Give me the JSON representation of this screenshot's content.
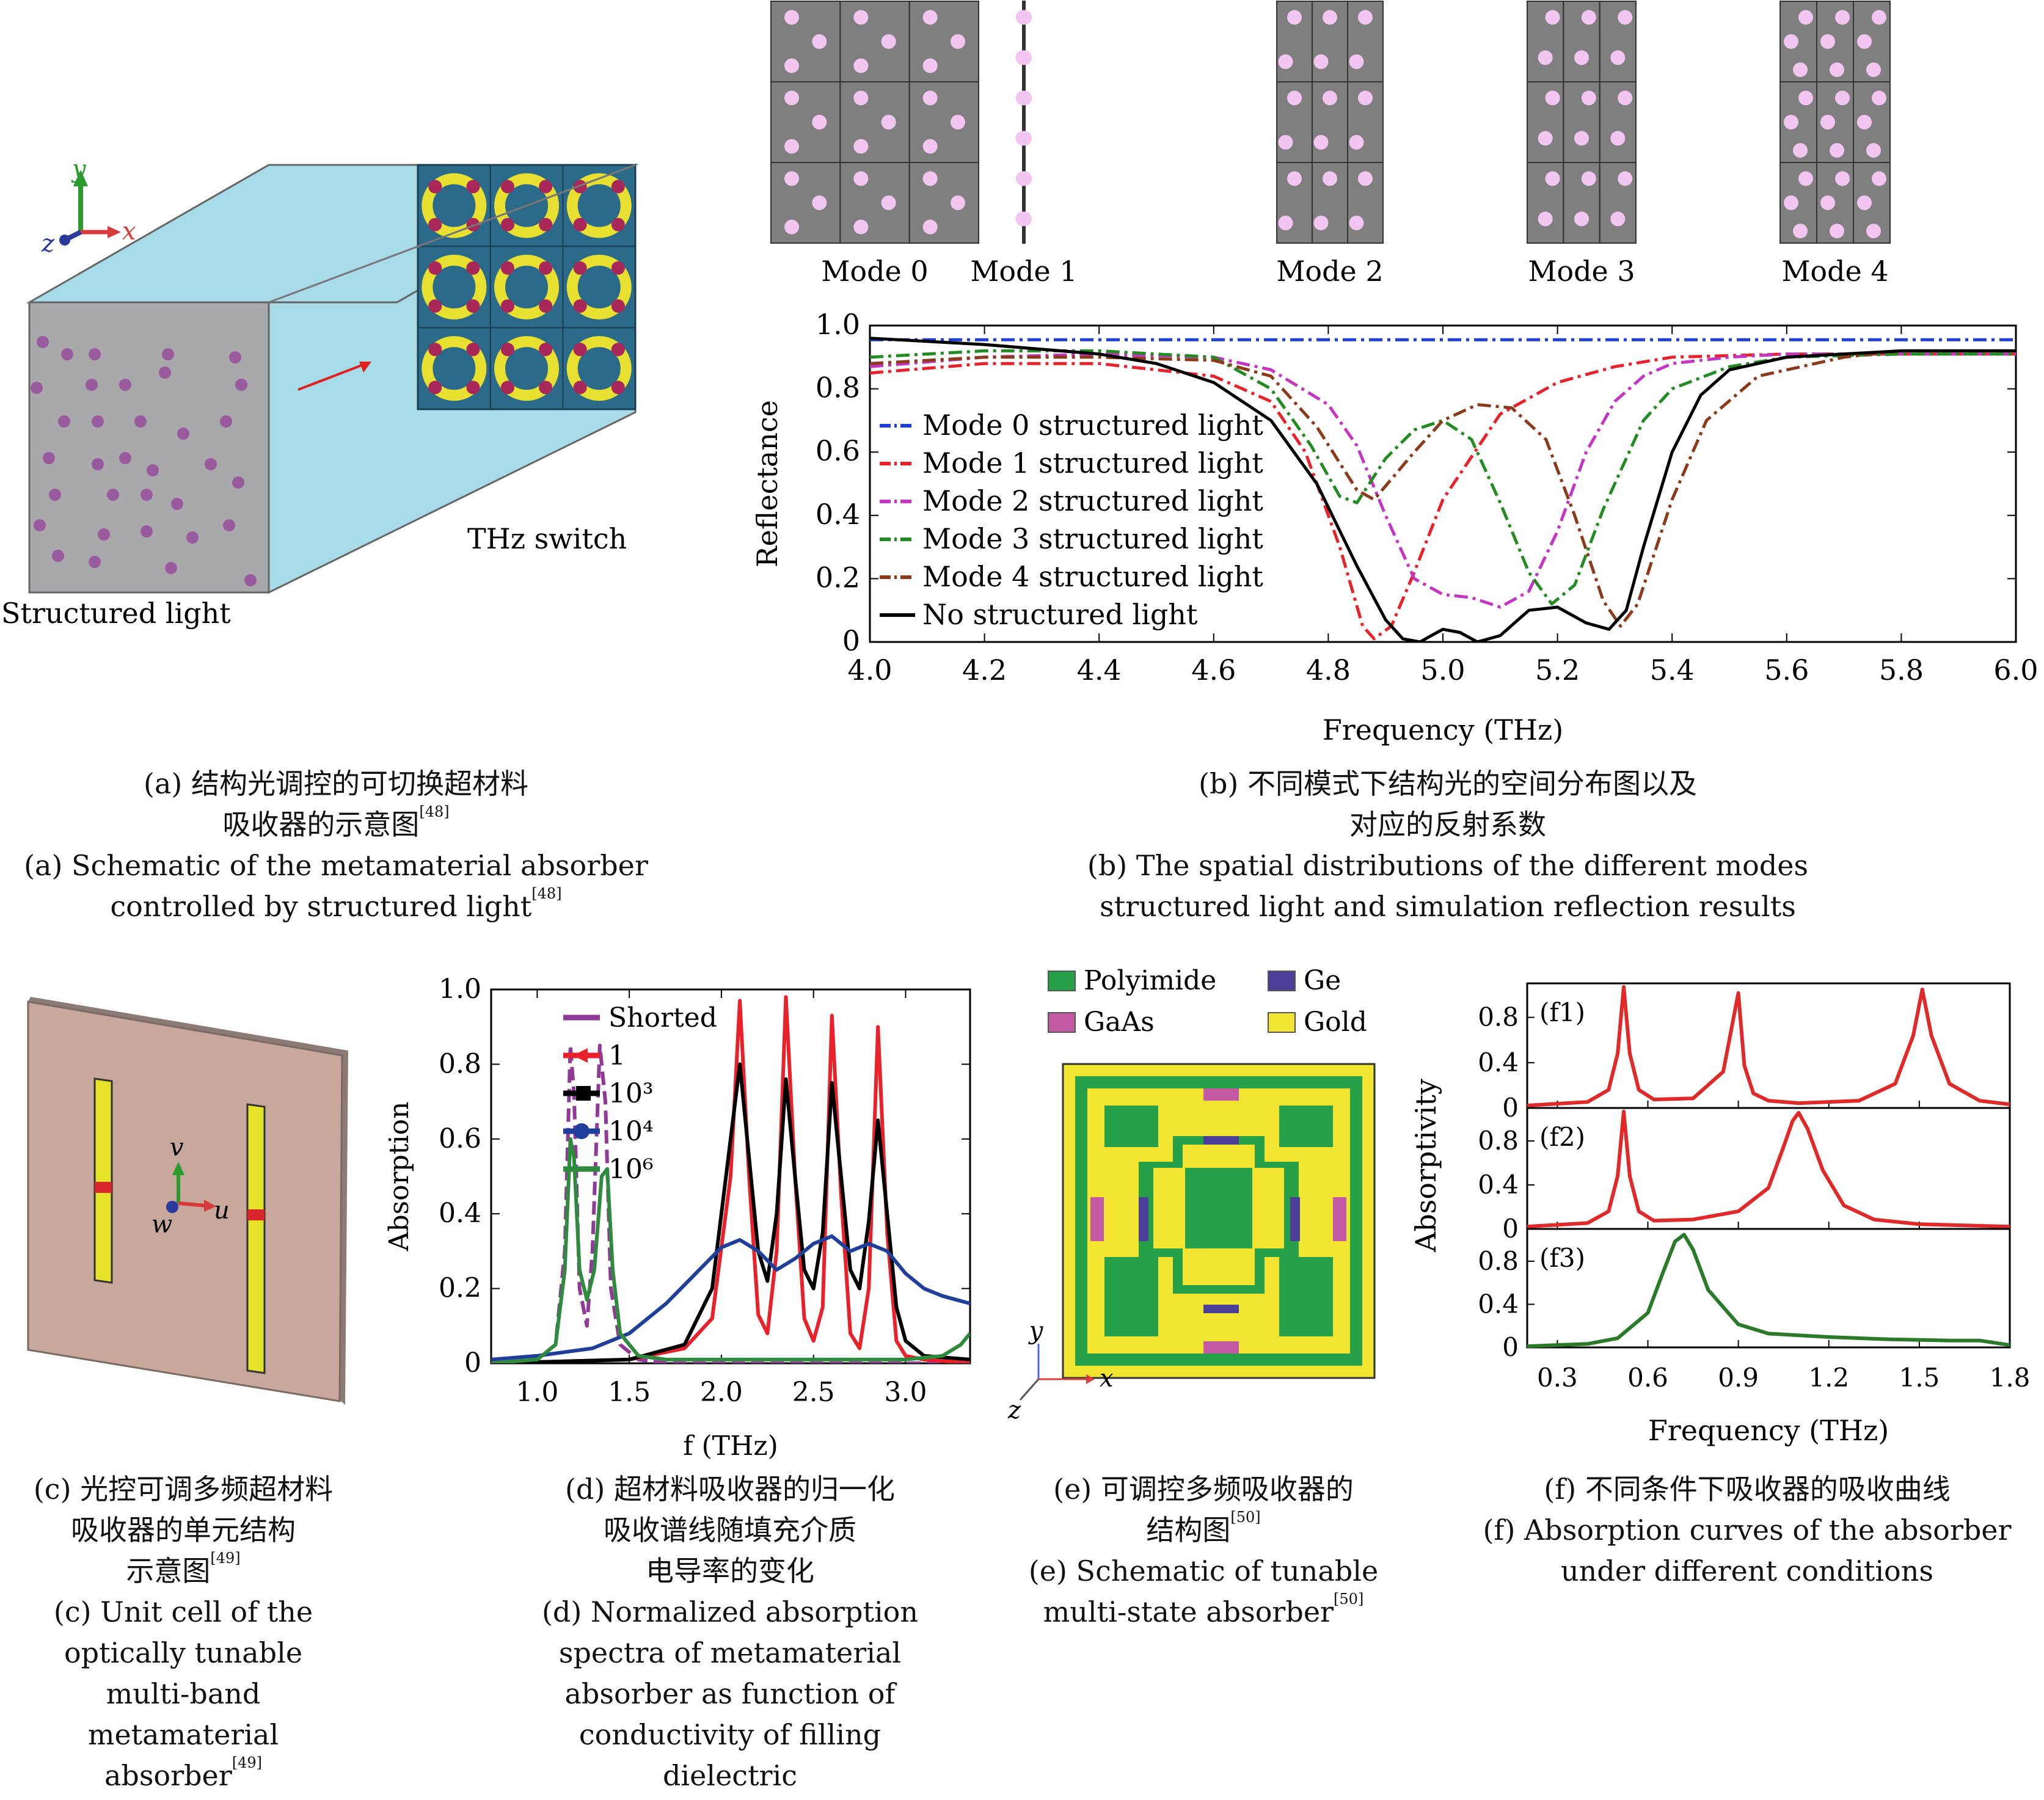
{
  "panel_a": {
    "axis_y": "y",
    "axis_x": "x",
    "axis_z": "z",
    "label_switch": "THz switch",
    "label_light": "Structured light"
  },
  "panel_b": {
    "modes": [
      "Mode 0",
      "Mode 1",
      "Mode 2",
      "Mode 3",
      "Mode 4"
    ]
  },
  "panel_c": {
    "axis_v": "v",
    "axis_u": "u",
    "axis_w": "w"
  },
  "panel_e": {
    "legend": [
      "Polyimide",
      "Ge",
      "GaAs",
      "Gold"
    ],
    "axis_y": "y",
    "axis_x": "x",
    "colors": {
      "Polyimide": "#27a048",
      "Ge": "#4b3e96",
      "GaAs": "#c45aa3",
      "Gold": "#f2e531"
    }
  },
  "captions": {
    "a": {
      "l1": "(a) 结构光调控的可切换超材料",
      "l2": "吸收器的示意图",
      "r2": "[48]",
      "l3": "(a) Schematic of the metamaterial absorber",
      "l4": "controlled by structured light",
      "r4": "[48]"
    },
    "b": {
      "l1": "(b) 不同模式下结构光的空间分布图以及",
      "l2": "对应的反射系数",
      "l3": "(b) The spatial distributions of the different modes",
      "l4": "structured light and simulation reflection results"
    },
    "c": {
      "l1": "(c) 光控可调多频超材料",
      "l2": "吸收器的单元结构",
      "l3": "示意图",
      "r3": "[49]",
      "l4": "(c) Unit cell of the",
      "l5": "optically tunable",
      "l6": "multi-band",
      "l7": "metamaterial",
      "l8": "absorber",
      "r8": "[49]"
    },
    "d": {
      "l1": "(d) 超材料吸收器的归一化",
      "l2": "吸收谱线随填充介质",
      "l3": "电导率的变化",
      "l4": "(d) Normalized absorption",
      "l5": "spectra of metamaterial",
      "l6": "absorber as function of",
      "l7": "conductivity of filling",
      "l8": "dielectric"
    },
    "e": {
      "l1": "(e) 可调控多频吸收器的",
      "l2": "结构图",
      "r2": "[50]",
      "l3": "(e) Schematic of tunable",
      "l4": "multi-state absorber",
      "r4": "[50]"
    },
    "f": {
      "l1": "(f) 不同条件下吸收器的吸收曲线",
      "l2": "(f) Absorption curves of the absorber",
      "l3": "under different conditions"
    }
  },
  "chart_data": [
    {
      "id": "b",
      "type": "line",
      "xlabel": "Frequency (THz)",
      "ylabel": "Reflectance",
      "xlim": [
        4.0,
        6.0
      ],
      "ylim": [
        0,
        1.0
      ],
      "xticks": [
        "4.0",
        "4.2",
        "4.4",
        "4.6",
        "4.8",
        "5.0",
        "5.2",
        "5.4",
        "5.6",
        "5.8",
        "6.0"
      ],
      "yticks": [
        "0",
        "0.2",
        "0.4",
        "0.6",
        "0.8",
        "1.0"
      ],
      "legend_position": "left",
      "series": [
        {
          "name": "Mode 0 structured light",
          "color": "#1f3fd6",
          "dash": "dashdot",
          "x": [
            4.0,
            4.5,
            5.0,
            5.5,
            6.0
          ],
          "y": [
            0.955,
            0.955,
            0.955,
            0.955,
            0.955
          ]
        },
        {
          "name": "Mode 1 structured light",
          "color": "#e8222a",
          "dash": "dashdot",
          "x": [
            4.0,
            4.2,
            4.4,
            4.6,
            4.7,
            4.76,
            4.82,
            4.86,
            4.88,
            4.91,
            4.95,
            5.0,
            5.1,
            5.2,
            5.3,
            5.4,
            5.6,
            5.8,
            6.0
          ],
          "y": [
            0.85,
            0.88,
            0.88,
            0.84,
            0.76,
            0.6,
            0.3,
            0.05,
            0.01,
            0.05,
            0.22,
            0.45,
            0.72,
            0.82,
            0.87,
            0.9,
            0.91,
            0.91,
            0.91
          ]
        },
        {
          "name": "Mode 2 structured light",
          "color": "#c435c4",
          "dash": "dashdot",
          "x": [
            4.0,
            4.2,
            4.4,
            4.6,
            4.7,
            4.8,
            4.85,
            4.9,
            4.95,
            5.0,
            5.05,
            5.1,
            5.15,
            5.2,
            5.25,
            5.3,
            5.35,
            5.4,
            5.5,
            5.6,
            5.8,
            6.0
          ],
          "y": [
            0.87,
            0.9,
            0.91,
            0.9,
            0.86,
            0.75,
            0.62,
            0.4,
            0.2,
            0.15,
            0.14,
            0.11,
            0.16,
            0.35,
            0.6,
            0.76,
            0.84,
            0.88,
            0.9,
            0.91,
            0.91,
            0.91
          ]
        },
        {
          "name": "Mode 3 structured light",
          "color": "#228b22",
          "dash": "dashdot",
          "x": [
            4.0,
            4.2,
            4.4,
            4.6,
            4.7,
            4.77,
            4.82,
            4.85,
            4.9,
            4.95,
            5.0,
            5.05,
            5.1,
            5.15,
            5.19,
            5.23,
            5.28,
            5.35,
            5.4,
            5.5,
            5.6,
            5.8,
            6.0
          ],
          "y": [
            0.9,
            0.92,
            0.92,
            0.9,
            0.8,
            0.62,
            0.46,
            0.44,
            0.58,
            0.67,
            0.7,
            0.64,
            0.44,
            0.22,
            0.12,
            0.18,
            0.42,
            0.7,
            0.8,
            0.87,
            0.9,
            0.91,
            0.91
          ]
        },
        {
          "name": "Mode 4 structured light",
          "color": "#8b3a1a",
          "dash": "dashdot",
          "x": [
            4.0,
            4.2,
            4.4,
            4.6,
            4.7,
            4.78,
            4.85,
            4.88,
            4.95,
            5.0,
            5.06,
            5.12,
            5.18,
            5.23,
            5.28,
            5.31,
            5.34,
            5.4,
            5.46,
            5.55,
            5.7,
            5.8,
            6.0
          ],
          "y": [
            0.88,
            0.9,
            0.9,
            0.89,
            0.84,
            0.68,
            0.48,
            0.45,
            0.6,
            0.7,
            0.75,
            0.74,
            0.64,
            0.4,
            0.13,
            0.05,
            0.12,
            0.45,
            0.7,
            0.84,
            0.9,
            0.92,
            0.92
          ]
        },
        {
          "name": "No structured light",
          "color": "#000000",
          "dash": "solid",
          "x": [
            4.0,
            4.2,
            4.4,
            4.5,
            4.6,
            4.7,
            4.78,
            4.85,
            4.9,
            4.93,
            4.96,
            4.98,
            5.0,
            5.03,
            5.06,
            5.1,
            5.15,
            5.2,
            5.25,
            5.29,
            5.32,
            5.35,
            5.4,
            5.45,
            5.5,
            5.6,
            5.8,
            6.0
          ],
          "y": [
            0.96,
            0.94,
            0.91,
            0.88,
            0.82,
            0.7,
            0.5,
            0.24,
            0.07,
            0.01,
            0.0,
            0.02,
            0.04,
            0.03,
            0.0,
            0.02,
            0.1,
            0.11,
            0.06,
            0.04,
            0.1,
            0.3,
            0.6,
            0.78,
            0.86,
            0.9,
            0.92,
            0.92
          ]
        }
      ]
    },
    {
      "id": "d",
      "type": "line",
      "xlabel": "f (THz)",
      "ylabel": "Absorption",
      "xlim": [
        0.75,
        3.35
      ],
      "ylim": [
        0,
        1.0
      ],
      "xticks": [
        "1.0",
        "1.5",
        "2.0",
        "2.5",
        "3.0"
      ],
      "yticks": [
        "0",
        "0.2",
        "0.4",
        "0.6",
        "0.8",
        "1.0"
      ],
      "legend_position": "top-left",
      "series": [
        {
          "name": "Shorted",
          "color": "#8e3a96",
          "dash": "dashed",
          "x": [
            0.75,
            1.0,
            1.1,
            1.15,
            1.18,
            1.2,
            1.23,
            1.27,
            1.3,
            1.34,
            1.37,
            1.4,
            1.45,
            1.55,
            1.7,
            2.0,
            3.35
          ],
          "y": [
            0.0,
            0.01,
            0.05,
            0.3,
            0.85,
            0.72,
            0.2,
            0.1,
            0.3,
            0.85,
            0.7,
            0.2,
            0.05,
            0.01,
            0.0,
            0.0,
            0.0
          ]
        },
        {
          "name": "1",
          "color": "#e8222a",
          "dash": "solid",
          "x": [
            0.75,
            1.5,
            1.8,
            1.95,
            2.05,
            2.1,
            2.15,
            2.2,
            2.25,
            2.3,
            2.35,
            2.4,
            2.45,
            2.5,
            2.55,
            2.6,
            2.65,
            2.7,
            2.75,
            2.8,
            2.85,
            2.9,
            2.95,
            3.0,
            3.1,
            3.35
          ],
          "y": [
            0.0,
            0.01,
            0.04,
            0.12,
            0.5,
            0.97,
            0.5,
            0.13,
            0.08,
            0.3,
            0.98,
            0.5,
            0.12,
            0.06,
            0.15,
            0.93,
            0.45,
            0.08,
            0.04,
            0.2,
            0.9,
            0.35,
            0.06,
            0.02,
            0.01,
            0.0
          ]
        },
        {
          "name": "10³",
          "color": "#000000",
          "dash": "solid",
          "x": [
            0.75,
            1.5,
            1.8,
            1.95,
            2.05,
            2.1,
            2.15,
            2.2,
            2.25,
            2.3,
            2.35,
            2.4,
            2.45,
            2.5,
            2.55,
            2.6,
            2.65,
            2.7,
            2.75,
            2.8,
            2.85,
            2.9,
            2.95,
            3.0,
            3.1,
            3.35
          ],
          "y": [
            0.0,
            0.01,
            0.05,
            0.2,
            0.6,
            0.8,
            0.55,
            0.3,
            0.22,
            0.4,
            0.76,
            0.5,
            0.25,
            0.2,
            0.35,
            0.75,
            0.5,
            0.25,
            0.2,
            0.38,
            0.65,
            0.4,
            0.15,
            0.06,
            0.02,
            0.01
          ]
        },
        {
          "name": "10⁴",
          "color": "#1f3f9a",
          "dash": "solid",
          "x": [
            0.75,
            1.0,
            1.3,
            1.5,
            1.7,
            1.9,
            2.0,
            2.1,
            2.2,
            2.3,
            2.4,
            2.5,
            2.6,
            2.7,
            2.8,
            2.9,
            3.0,
            3.1,
            3.2,
            3.35
          ],
          "y": [
            0.01,
            0.02,
            0.04,
            0.08,
            0.16,
            0.26,
            0.31,
            0.33,
            0.3,
            0.25,
            0.28,
            0.32,
            0.34,
            0.3,
            0.32,
            0.3,
            0.24,
            0.2,
            0.18,
            0.16
          ]
        },
        {
          "name": "10⁶",
          "color": "#2e8b3e",
          "dash": "solid",
          "x": [
            0.75,
            1.0,
            1.1,
            1.15,
            1.18,
            1.2,
            1.23,
            1.27,
            1.31,
            1.35,
            1.38,
            1.41,
            1.45,
            1.55,
            1.7,
            2.0,
            3.0,
            3.2,
            3.3,
            3.35
          ],
          "y": [
            0.0,
            0.01,
            0.05,
            0.25,
            0.6,
            0.55,
            0.25,
            0.17,
            0.25,
            0.5,
            0.52,
            0.25,
            0.08,
            0.02,
            0.01,
            0.01,
            0.01,
            0.02,
            0.05,
            0.08
          ]
        }
      ]
    },
    {
      "id": "f",
      "type": "line",
      "xlabel": "Frequency (THz)",
      "ylabel": "Absorptivity",
      "xlim": [
        0.2,
        1.8
      ],
      "ylim": [
        0,
        1.0
      ],
      "xticks": [
        "0.3",
        "0.6",
        "0.9",
        "1.2",
        "1.5",
        "1.8"
      ],
      "yticks": [
        "0",
        "0.4",
        "0.8"
      ],
      "panels": [
        {
          "label": "(f1)",
          "color": "#e02a2a",
          "x": [
            0.2,
            0.4,
            0.47,
            0.5,
            0.52,
            0.54,
            0.57,
            0.62,
            0.75,
            0.85,
            0.9,
            0.92,
            0.95,
            1.0,
            1.1,
            1.3,
            1.42,
            1.48,
            1.51,
            1.54,
            1.6,
            1.7,
            1.8
          ],
          "y": [
            0.02,
            0.05,
            0.15,
            0.45,
            1.0,
            0.45,
            0.15,
            0.07,
            0.08,
            0.3,
            0.95,
            0.35,
            0.12,
            0.06,
            0.04,
            0.06,
            0.2,
            0.6,
            0.98,
            0.6,
            0.2,
            0.06,
            0.03
          ]
        },
        {
          "label": "(f2)",
          "color": "#e02a2a",
          "x": [
            0.2,
            0.4,
            0.47,
            0.5,
            0.52,
            0.54,
            0.57,
            0.62,
            0.75,
            0.9,
            1.0,
            1.05,
            1.08,
            1.1,
            1.13,
            1.18,
            1.25,
            1.35,
            1.5,
            1.65,
            1.8
          ],
          "y": [
            0.02,
            0.05,
            0.15,
            0.45,
            1.0,
            0.45,
            0.15,
            0.07,
            0.08,
            0.15,
            0.35,
            0.7,
            0.92,
            0.99,
            0.85,
            0.5,
            0.2,
            0.08,
            0.04,
            0.03,
            0.02
          ]
        },
        {
          "label": "(f3)",
          "color": "#2a7a2a",
          "x": [
            0.2,
            0.4,
            0.5,
            0.6,
            0.65,
            0.69,
            0.72,
            0.75,
            0.8,
            0.9,
            1.0,
            1.2,
            1.4,
            1.6,
            1.7,
            1.8
          ],
          "y": [
            0.01,
            0.03,
            0.08,
            0.3,
            0.65,
            0.92,
            0.98,
            0.85,
            0.5,
            0.2,
            0.12,
            0.09,
            0.07,
            0.06,
            0.06,
            0.02
          ]
        }
      ]
    }
  ]
}
